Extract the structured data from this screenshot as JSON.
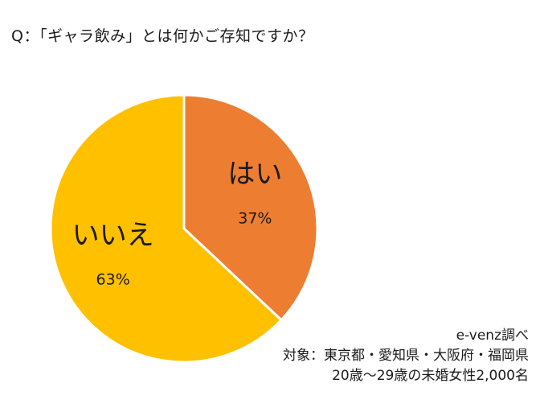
{
  "question": "Q：「ギャラ飲み」とは何かご存知ですか？",
  "chart_data": {
    "type": "pie",
    "title": "",
    "start_angle_deg": 0,
    "direction": "clockwise",
    "slices": [
      {
        "label": "はい",
        "value": 37,
        "value_label": "37%",
        "color": "#ED7D31"
      },
      {
        "label": "いいえ",
        "value": 63,
        "value_label": "63%",
        "color": "#FFC000"
      }
    ],
    "slice_border_color": "#ffffff",
    "legend": "none"
  },
  "footnote": {
    "source": "e-venz調べ",
    "target": "対象：東京都・愛知県・大阪府・福岡県",
    "demographic": "20歳〜29歳の未婚女性2,000名"
  }
}
